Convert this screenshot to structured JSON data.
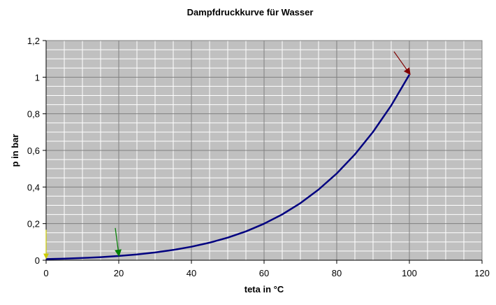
{
  "chart_data": {
    "type": "line",
    "title": "Dampfdruckkurve für Wasser",
    "xlabel": "teta in °C",
    "ylabel": "p in bar",
    "xlim": [
      0,
      120
    ],
    "ylim": [
      0,
      1.2
    ],
    "x_ticks": [
      0,
      20,
      40,
      60,
      80,
      100,
      120
    ],
    "x_tick_labels": [
      "0",
      "20",
      "40",
      "60",
      "80",
      "100",
      "120"
    ],
    "y_ticks": [
      0,
      0.2,
      0.4,
      0.6,
      0.8,
      1,
      1.2
    ],
    "y_tick_labels": [
      "0",
      "0,2",
      "0,4",
      "0,6",
      "0,8",
      "1",
      "1,2"
    ],
    "grid": true,
    "minor_grid": true,
    "plot_background": "#c0c0c0",
    "gridline_color": "#ffffff",
    "series": [
      {
        "color": "#000080",
        "x": [
          0,
          5,
          10,
          15,
          20,
          25,
          30,
          35,
          40,
          45,
          50,
          55,
          60,
          65,
          70,
          75,
          80,
          85,
          90,
          95,
          100
        ],
        "y": [
          0.0061,
          0.0087,
          0.0123,
          0.017,
          0.0234,
          0.0317,
          0.0424,
          0.0562,
          0.0738,
          0.0959,
          0.1235,
          0.1576,
          0.1994,
          0.2503,
          0.3119,
          0.3858,
          0.4739,
          0.5783,
          0.7013,
          0.8455,
          1.0135
        ]
      }
    ],
    "annotations": [
      {
        "type": "arrow",
        "color": "#cccc00",
        "at": [
          0,
          0.0061
        ]
      },
      {
        "type": "arrow",
        "color": "#008000",
        "at": [
          20,
          0.0234
        ]
      },
      {
        "type": "arrow",
        "color": "#800000",
        "at": [
          100,
          1.0135
        ]
      }
    ]
  }
}
